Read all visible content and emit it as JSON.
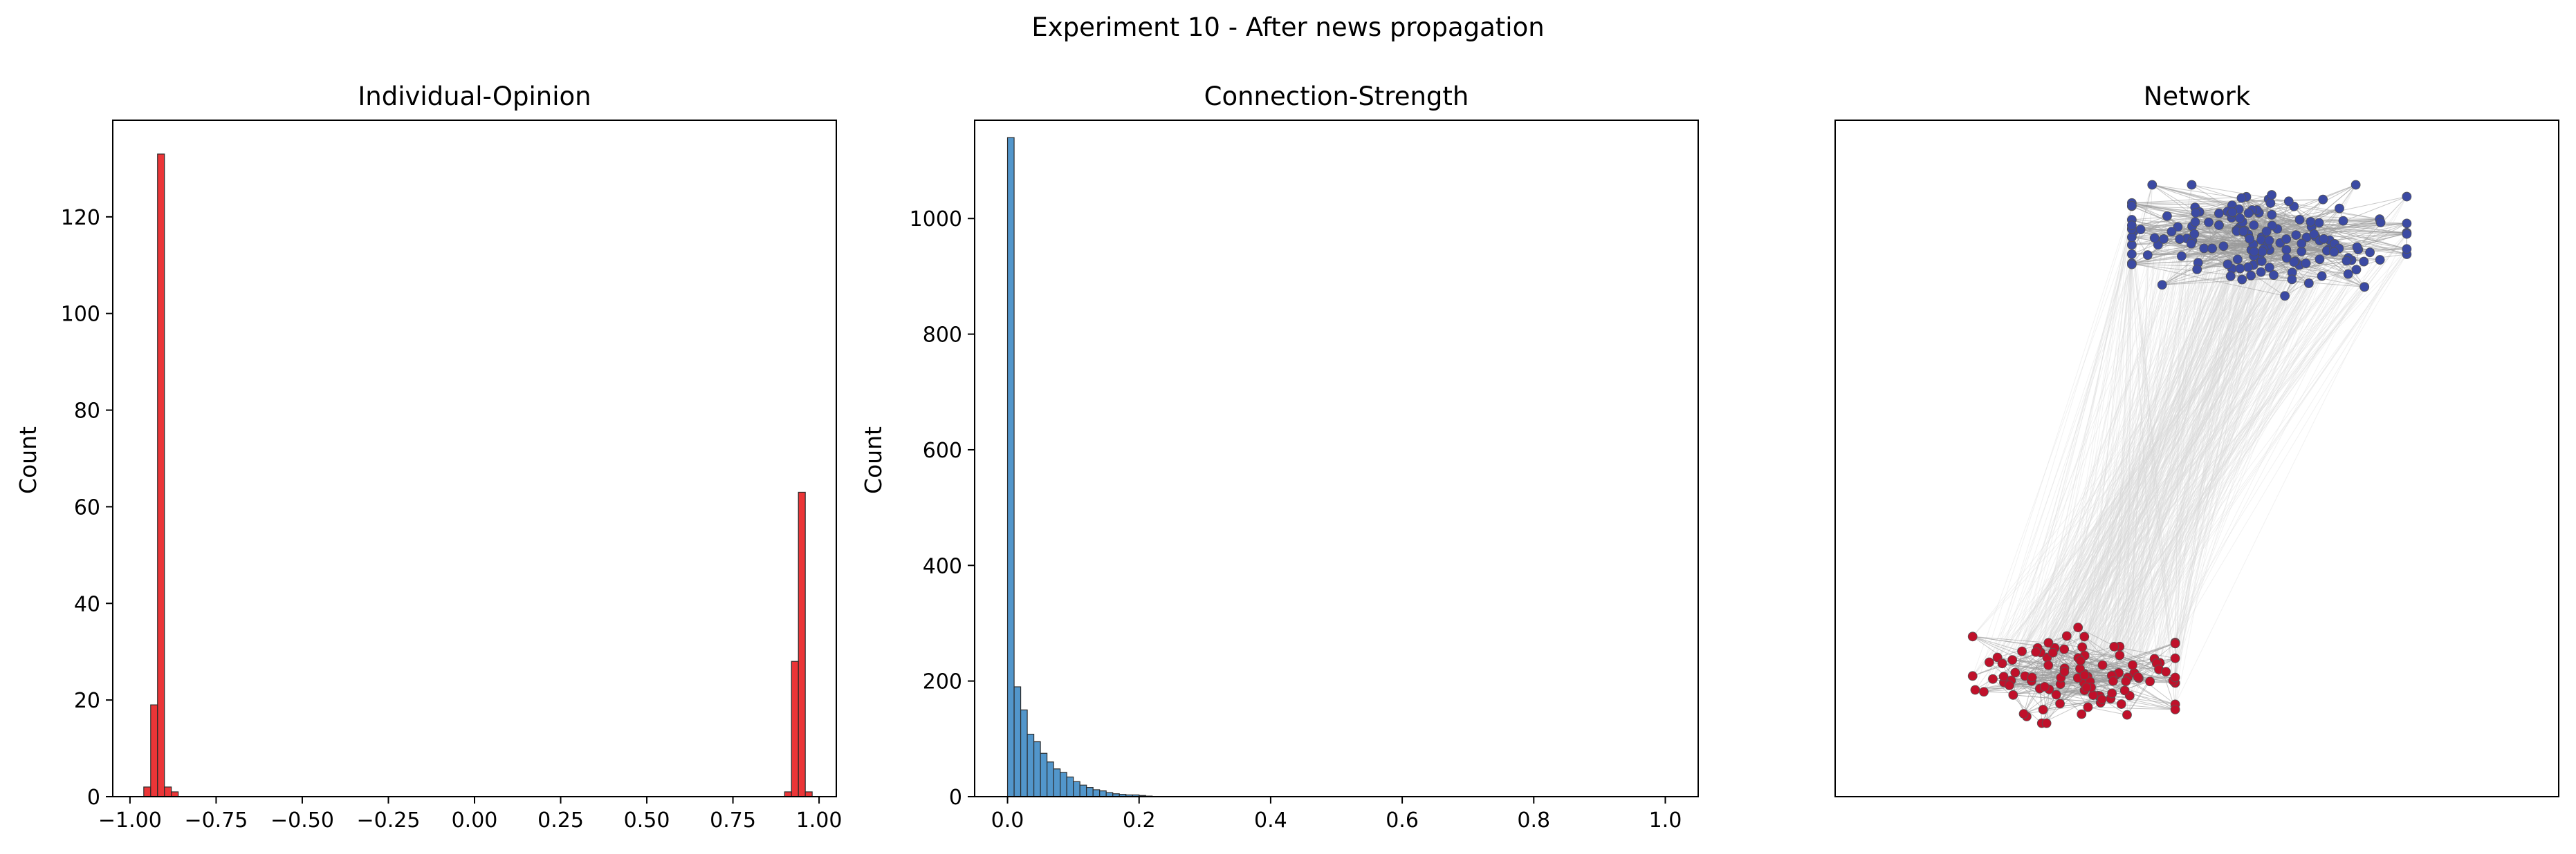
{
  "suptitle": "Experiment 10 - After news propagation",
  "chart_data": [
    {
      "type": "bar",
      "title": "Individual-Opinion",
      "xlabel": "",
      "ylabel": "Count",
      "xlim": [
        -1.05,
        1.05
      ],
      "ylim": [
        0,
        140
      ],
      "xticks": [
        -1.0,
        -0.75,
        -0.5,
        -0.25,
        0.0,
        0.25,
        0.5,
        0.75,
        1.0
      ],
      "xtick_labels": [
        "−1.00",
        "−0.75",
        "−0.50",
        "−0.25",
        "0.00",
        "0.25",
        "0.50",
        "0.75",
        "1.00"
      ],
      "yticks": [
        0,
        20,
        40,
        60,
        80,
        100,
        120
      ],
      "ytick_labels": [
        "0",
        "20",
        "40",
        "60",
        "80",
        "100",
        "120"
      ],
      "bin_width": 0.02,
      "bins": [
        {
          "x": -0.95,
          "count": 2
        },
        {
          "x": -0.93,
          "count": 19
        },
        {
          "x": -0.91,
          "count": 133
        },
        {
          "x": -0.89,
          "count": 2
        },
        {
          "x": -0.87,
          "count": 1
        },
        {
          "x": 0.91,
          "count": 1
        },
        {
          "x": 0.93,
          "count": 28
        },
        {
          "x": 0.95,
          "count": 63
        },
        {
          "x": 0.97,
          "count": 1
        }
      ],
      "color": "#e8191b"
    },
    {
      "type": "bar",
      "title": "Connection-Strength",
      "xlabel": "",
      "ylabel": "Count",
      "xlim": [
        -0.05,
        1.05
      ],
      "ylim": [
        0,
        1170
      ],
      "xticks": [
        0.0,
        0.2,
        0.4,
        0.6,
        0.8,
        1.0
      ],
      "xtick_labels": [
        "0.0",
        "0.2",
        "0.4",
        "0.6",
        "0.8",
        "1.0"
      ],
      "yticks": [
        0,
        200,
        400,
        600,
        800,
        1000
      ],
      "ytick_labels": [
        "0",
        "200",
        "400",
        "600",
        "800",
        "1000"
      ],
      "bin_width": 0.01,
      "bins": [
        {
          "x": 0.005,
          "count": 1140
        },
        {
          "x": 0.015,
          "count": 190
        },
        {
          "x": 0.025,
          "count": 150
        },
        {
          "x": 0.035,
          "count": 108
        },
        {
          "x": 0.045,
          "count": 95
        },
        {
          "x": 0.055,
          "count": 75
        },
        {
          "x": 0.065,
          "count": 60
        },
        {
          "x": 0.075,
          "count": 48
        },
        {
          "x": 0.085,
          "count": 42
        },
        {
          "x": 0.095,
          "count": 34
        },
        {
          "x": 0.105,
          "count": 26
        },
        {
          "x": 0.115,
          "count": 20
        },
        {
          "x": 0.125,
          "count": 16
        },
        {
          "x": 0.135,
          "count": 12
        },
        {
          "x": 0.145,
          "count": 10
        },
        {
          "x": 0.155,
          "count": 7
        },
        {
          "x": 0.165,
          "count": 5
        },
        {
          "x": 0.175,
          "count": 4
        },
        {
          "x": 0.185,
          "count": 3
        },
        {
          "x": 0.195,
          "count": 3
        },
        {
          "x": 0.205,
          "count": 2
        },
        {
          "x": 0.215,
          "count": 1
        }
      ],
      "color": "#3a87c4"
    },
    {
      "type": "scatter",
      "title": "Network",
      "xlim": [
        0,
        1
      ],
      "ylim": [
        0,
        1
      ],
      "grid": false,
      "groups": [
        {
          "color": "#3b4aa3",
          "center": [
            0.6,
            0.82
          ],
          "spread": [
            0.19,
            0.065
          ],
          "count": 160
        },
        {
          "color": "#c0102a",
          "center": [
            0.33,
            0.18
          ],
          "spread": [
            0.14,
            0.055
          ],
          "count": 100
        }
      ],
      "intra_edge_color": "#9a9a9a",
      "inter_edge_color": "#d8d8d8"
    }
  ]
}
